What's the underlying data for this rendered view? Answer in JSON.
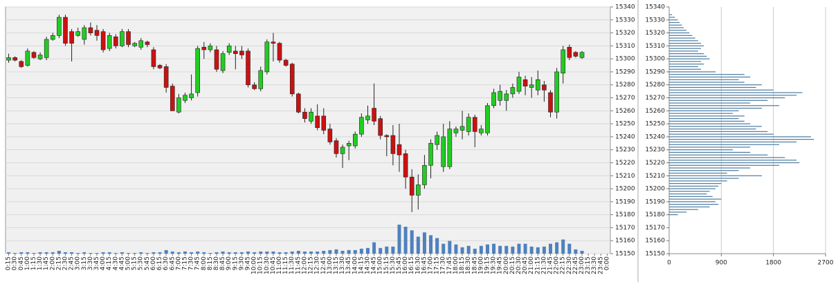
{
  "chart_data": [
    {
      "type": "candlestick",
      "x": [
        "0:15",
        "0:30",
        "0:45",
        "1:00",
        "1:15",
        "1:30",
        "1:45",
        "2:00",
        "2:15",
        "2:30",
        "2:45",
        "3:00",
        "3:15",
        "3:30",
        "3:45",
        "4:00",
        "4:15",
        "4:30",
        "4:45",
        "5:00",
        "5:15",
        "5:30",
        "5:45",
        "6:00",
        "6:15",
        "6:30",
        "6:45",
        "7:00",
        "7:15",
        "7:30",
        "7:45",
        "8:00",
        "8:15",
        "8:30",
        "8:45",
        "9:00",
        "9:15",
        "9:30",
        "9:45",
        "10:00",
        "10:15",
        "10:30",
        "10:45",
        "11:00",
        "11:15",
        "11:30",
        "11:45",
        "12:00",
        "12:15",
        "12:30",
        "12:45",
        "13:00",
        "13:15",
        "13:30",
        "13:45",
        "14:00",
        "14:15",
        "14:30",
        "14:45",
        "15:00",
        "15:15",
        "15:30",
        "15:45",
        "16:00",
        "16:15",
        "16:30",
        "16:45",
        "17:00",
        "17:15",
        "17:30",
        "17:45",
        "18:00",
        "18:15",
        "18:30",
        "18:45",
        "19:00",
        "19:15",
        "19:30",
        "19:45",
        "20:00",
        "20:15",
        "20:30",
        "20:45",
        "21:00",
        "21:15",
        "21:30",
        "21:45",
        "22:00",
        "22:15",
        "22:30",
        "22:45",
        "23:00",
        "23:15",
        "23:30",
        "23:45",
        "0:00"
      ],
      "open": [
        15299,
        15301,
        15298,
        15295,
        15305,
        15300,
        15301,
        15315,
        15318,
        15332,
        15321,
        15318,
        15315,
        15324,
        15322,
        15321,
        15308,
        15317,
        15310,
        15321,
        15310,
        15309,
        15313,
        15307,
        15295,
        15294,
        15279,
        15259,
        15268,
        15270,
        15274,
        15309,
        15307,
        15307,
        15291,
        15305,
        15306,
        15306,
        15306,
        15280,
        15277,
        15290,
        15313,
        15312,
        15299,
        15296,
        15273,
        15259,
        15252,
        15256,
        15256,
        15246,
        15237,
        15227,
        15233,
        15233,
        15242,
        15253,
        15262,
        15254,
        15241,
        15241,
        15234,
        15227,
        15209,
        15195,
        15203,
        15218,
        15234,
        15217,
        15217,
        15243,
        15245,
        15244,
        15255,
        15243,
        15243,
        15264,
        15268,
        15268,
        15273,
        15275,
        15284,
        15278,
        15276,
        15280,
        15274,
        15259,
        15289,
        15309,
        15305,
        15301,
        null,
        null,
        null,
        null
      ],
      "high": [
        15304,
        15302,
        15299,
        15308,
        15306,
        15305,
        15317,
        15320,
        15334,
        15334,
        15323,
        15324,
        15326,
        15328,
        15326,
        15323,
        15320,
        15319,
        15323,
        15323,
        15313,
        15316,
        15314,
        15309,
        15296,
        15296,
        15281,
        15273,
        15274,
        15288,
        15310,
        15313,
        15312,
        15310,
        15306,
        15312,
        15310,
        15310,
        15308,
        15282,
        15294,
        15315,
        15320,
        15313,
        15300,
        15297,
        15274,
        15262,
        15262,
        15265,
        15262,
        15250,
        15239,
        15234,
        15237,
        15244,
        15258,
        15264,
        15281,
        15256,
        15242,
        15249,
        15250,
        15230,
        15215,
        15211,
        15226,
        15238,
        15244,
        15250,
        15252,
        15248,
        15260,
        15258,
        15257,
        15249,
        15266,
        15277,
        15280,
        15276,
        15281,
        15290,
        15287,
        15286,
        15291,
        15283,
        15276,
        15293,
        15310,
        15311,
        15306,
        15306,
        null,
        null,
        null,
        null
      ],
      "low": [
        15297,
        15298,
        15293,
        15294,
        15300,
        15299,
        15299,
        15314,
        15316,
        15310,
        15298,
        15317,
        15311,
        15318,
        15314,
        15305,
        15306,
        15308,
        15309,
        15309,
        15309,
        15307,
        15309,
        15292,
        15292,
        15274,
        15260,
        15258,
        15266,
        15268,
        15271,
        15300,
        15305,
        15290,
        15289,
        15303,
        15292,
        15300,
        15278,
        15276,
        15275,
        15288,
        15298,
        15297,
        15294,
        15271,
        15258,
        15251,
        15250,
        15245,
        15242,
        15234,
        15224,
        15216,
        15222,
        15231,
        15240,
        15250,
        15249,
        15238,
        15225,
        15218,
        15213,
        15200,
        15182,
        15184,
        15200,
        15208,
        15230,
        15213,
        15215,
        15240,
        15238,
        15241,
        15232,
        15241,
        15241,
        15262,
        15264,
        15260,
        15270,
        15273,
        15272,
        15270,
        15272,
        15267,
        15255,
        15254,
        15281,
        15299,
        15301,
        15300,
        null,
        null,
        null,
        null
      ],
      "close": [
        15301,
        15299,
        15294,
        15306,
        15301,
        15303,
        15315,
        15318,
        15332,
        15312,
        15312,
        15321,
        15324,
        15320,
        15318,
        15307,
        15318,
        15310,
        15321,
        15311,
        15312,
        15314,
        15311,
        15294,
        15293,
        15278,
        15260,
        15270,
        15272,
        15273,
        15308,
        15307,
        15310,
        15292,
        15304,
        15310,
        15304,
        15303,
        15280,
        15277,
        15291,
        15313,
        15312,
        15299,
        15295,
        15273,
        15259,
        15254,
        15259,
        15247,
        15245,
        15236,
        15227,
        15232,
        15235,
        15242,
        15255,
        15256,
        15252,
        15241,
        15240,
        15227,
        15226,
        15209,
        15195,
        15203,
        15218,
        15235,
        15241,
        15240,
        15246,
        15246,
        15248,
        15255,
        15244,
        15246,
        15264,
        15274,
        15275,
        15273,
        15278,
        15286,
        15279,
        15280,
        15284,
        15276,
        15259,
        15290,
        15307,
        15301,
        15302,
        15305,
        null,
        null,
        null,
        null
      ],
      "volume": [
        20,
        10,
        20,
        20,
        10,
        20,
        20,
        20,
        40,
        20,
        20,
        10,
        20,
        10,
        10,
        20,
        20,
        10,
        20,
        10,
        10,
        20,
        10,
        20,
        20,
        50,
        30,
        20,
        30,
        20,
        30,
        20,
        10,
        20,
        30,
        20,
        20,
        20,
        30,
        20,
        30,
        30,
        30,
        20,
        20,
        30,
        40,
        30,
        30,
        30,
        40,
        50,
        60,
        40,
        50,
        50,
        70,
        80,
        160,
        80,
        100,
        100,
        410,
        380,
        330,
        240,
        300,
        260,
        220,
        140,
        180,
        130,
        90,
        110,
        70,
        110,
        130,
        140,
        110,
        110,
        100,
        140,
        140,
        100,
        90,
        100,
        140,
        160,
        200,
        140,
        60,
        40,
        null,
        null,
        null,
        null
      ],
      "ylim": [
        15150,
        15340
      ],
      "yticks": [
        15150,
        15160,
        15170,
        15180,
        15190,
        15200,
        15210,
        15220,
        15230,
        15240,
        15250,
        15260,
        15270,
        15280,
        15290,
        15300,
        15310,
        15320,
        15330,
        15340
      ],
      "up_color": "#22cc22",
      "down_color": "#cc1111",
      "volume_color": "#4f81bd",
      "grid": true
    },
    {
      "type": "profile",
      "levels": [
        15334,
        15332,
        15330,
        15328,
        15326,
        15324,
        15322,
        15320,
        15318,
        15316,
        15314,
        15312,
        15310,
        15308,
        15306,
        15304,
        15302,
        15300,
        15298,
        15296,
        15294,
        15292,
        15290,
        15288,
        15286,
        15284,
        15282,
        15280,
        15278,
        15276,
        15274,
        15272,
        15270,
        15268,
        15266,
        15264,
        15262,
        15260,
        15258,
        15256,
        15254,
        15252,
        15250,
        15248,
        15246,
        15244,
        15242,
        15240,
        15238,
        15236,
        15234,
        15232,
        15230,
        15228,
        15226,
        15224,
        15222,
        15220,
        15218,
        15216,
        15214,
        15212,
        15210,
        15208,
        15206,
        15204,
        15202,
        15200,
        15198,
        15196,
        15194,
        15192,
        15190,
        15188,
        15186,
        15184,
        15182,
        15180
      ],
      "values": [
        50,
        100,
        150,
        180,
        220,
        250,
        300,
        350,
        400,
        450,
        500,
        550,
        600,
        550,
        500,
        600,
        650,
        700,
        550,
        600,
        500,
        550,
        800,
        1300,
        1400,
        1200,
        1300,
        1600,
        1500,
        1800,
        2300,
        2200,
        2000,
        1700,
        1400,
        1900,
        1600,
        1200,
        1100,
        1300,
        1200,
        1300,
        1400,
        1600,
        1500,
        1700,
        1800,
        2450,
        2500,
        2200,
        1900,
        1400,
        1100,
        1400,
        1700,
        2000,
        2200,
        2250,
        1900,
        1400,
        1200,
        1000,
        1600,
        1200,
        1000,
        900,
        850,
        800,
        700,
        650,
        750,
        900,
        800,
        850,
        700,
        500,
        300,
        150
      ],
      "xlim": [
        0,
        2700
      ],
      "xticks": [
        0,
        900,
        1800,
        2700
      ],
      "ylim": [
        15150,
        15340
      ],
      "yticks": [
        15150,
        15160,
        15170,
        15180,
        15190,
        15200,
        15210,
        15220,
        15230,
        15240,
        15250,
        15260,
        15270,
        15280,
        15290,
        15300,
        15310,
        15320,
        15330,
        15340
      ],
      "color": "#4a7aa0",
      "grid": true
    }
  ]
}
